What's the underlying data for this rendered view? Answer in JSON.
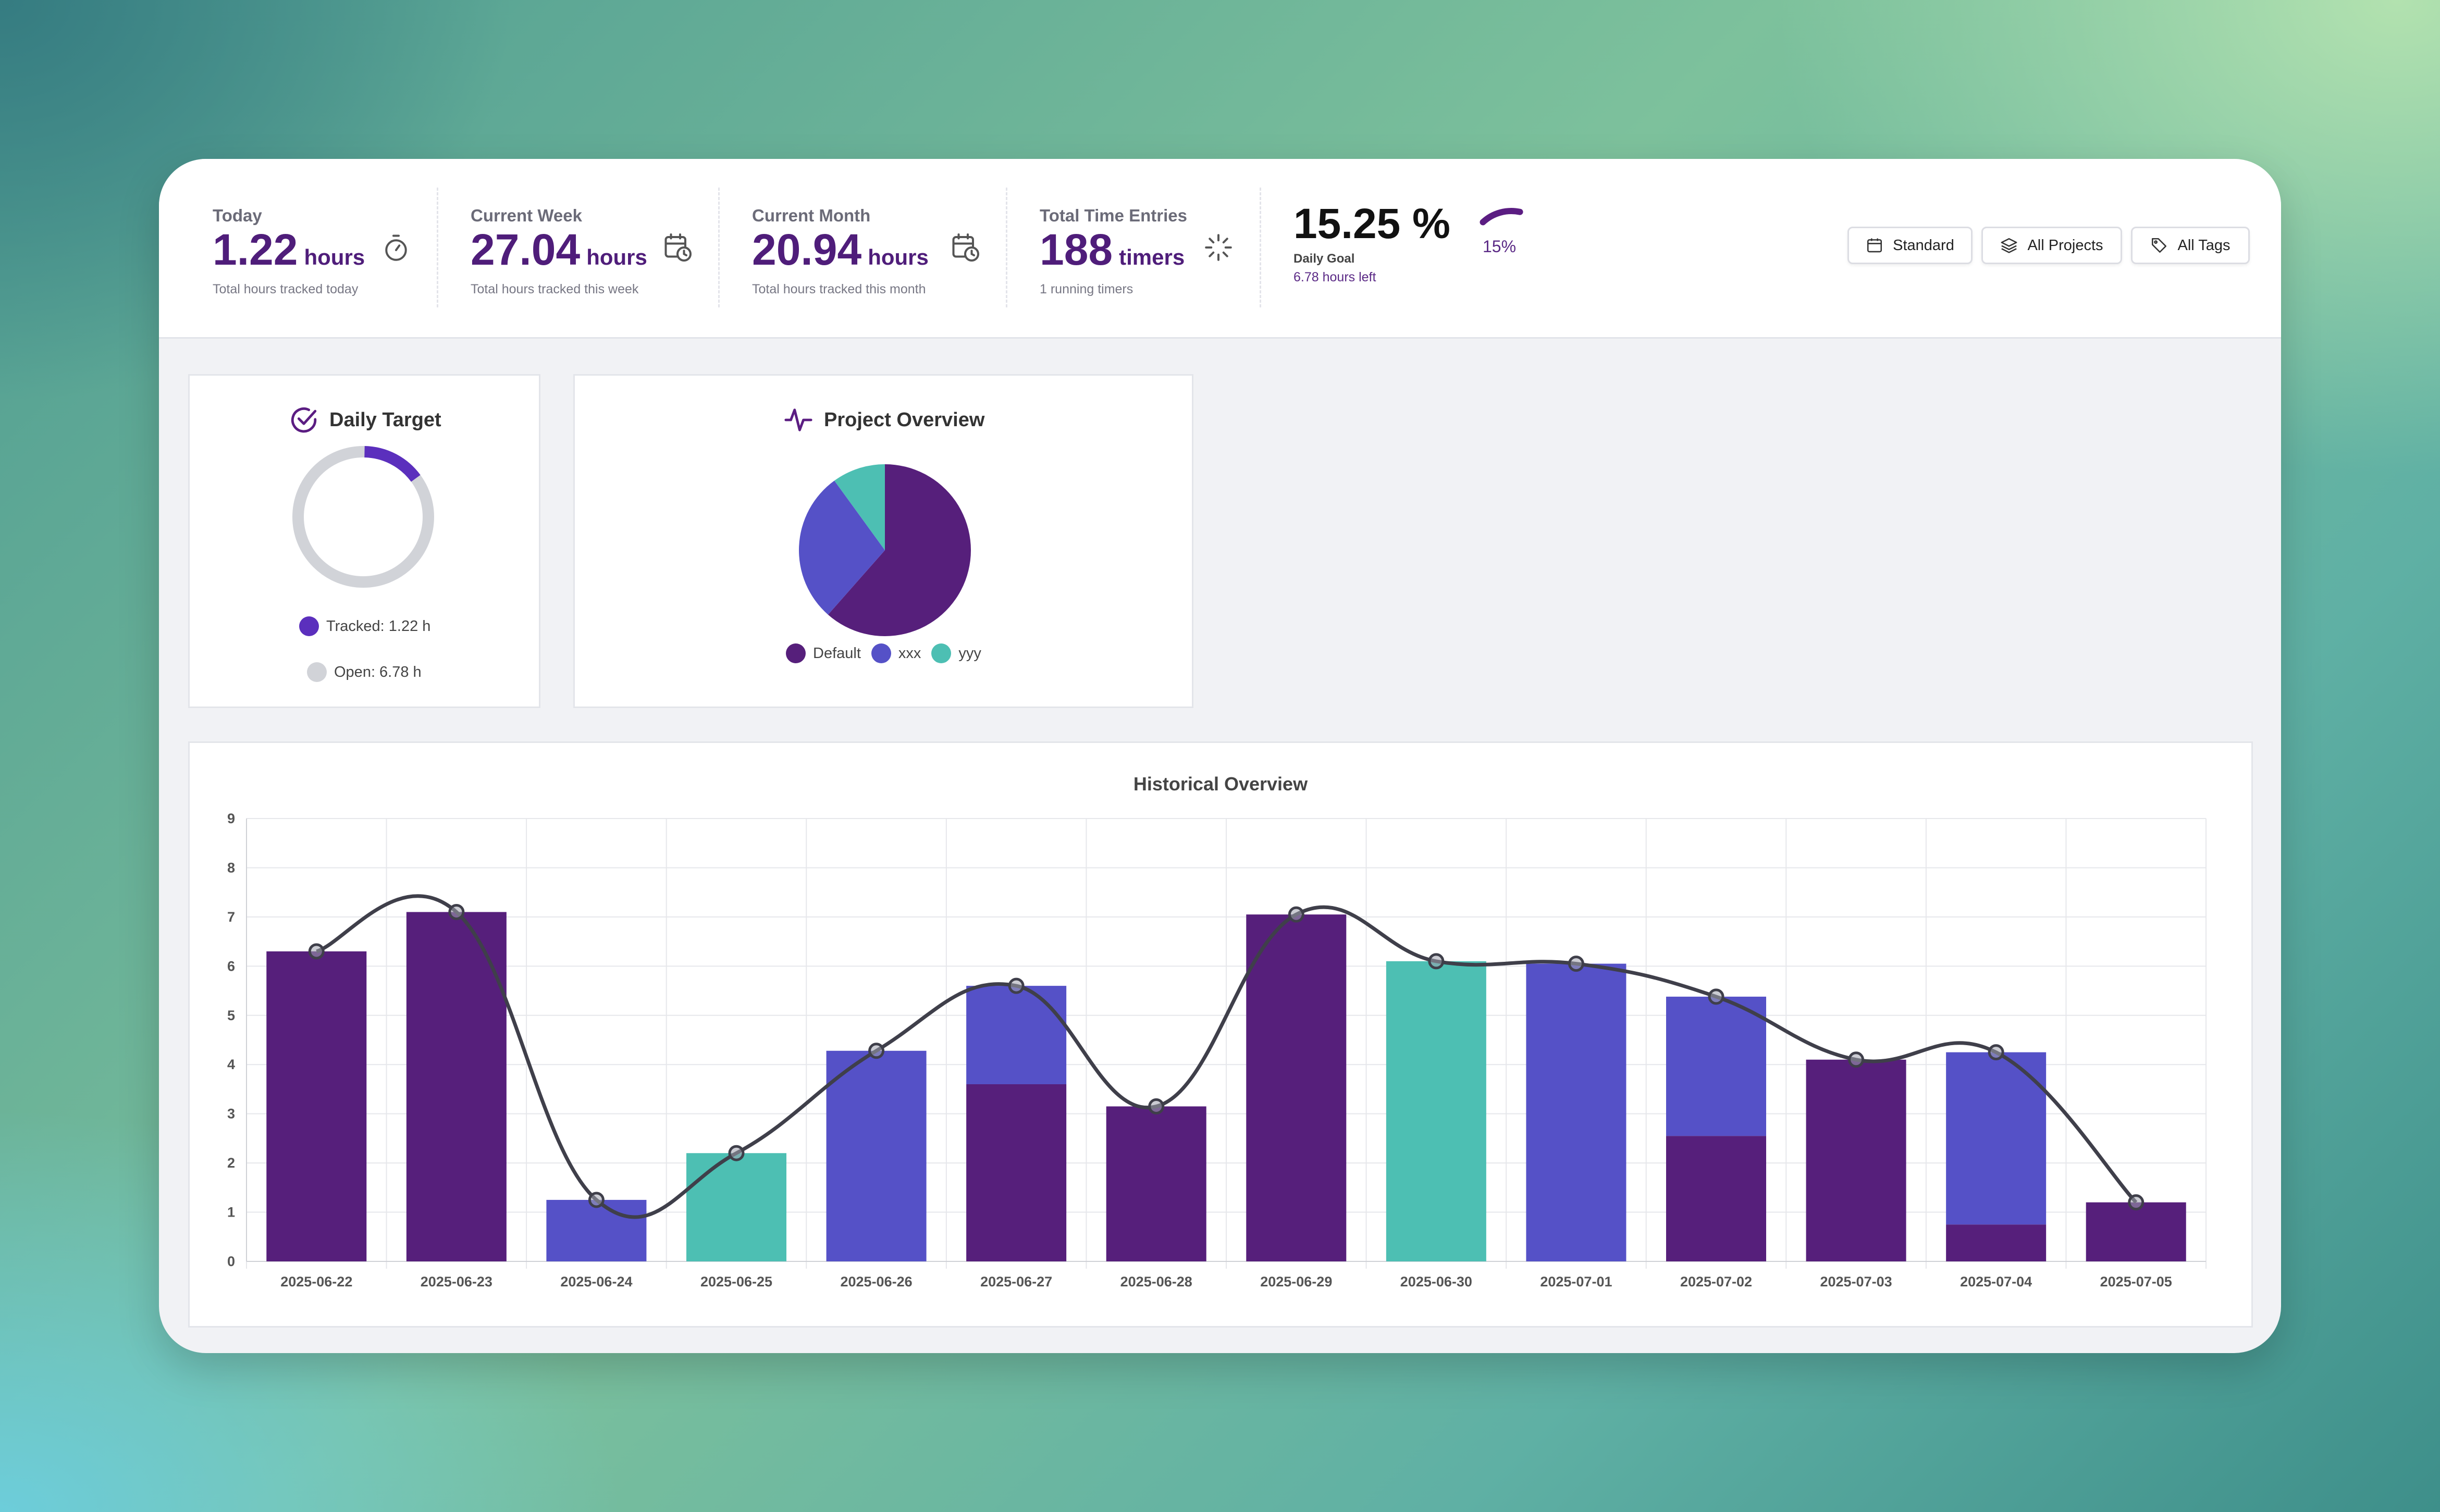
{
  "stats": [
    {
      "label": "Today",
      "value": "1.22",
      "unit": "hours",
      "sub": "Total hours tracked today",
      "icon": "stopwatch-icon"
    },
    {
      "label": "Current Week",
      "value": "27.04",
      "unit": "hours",
      "sub": "Total hours tracked this week",
      "icon": "calendar-clock-icon"
    },
    {
      "label": "Current Month",
      "value": "20.94",
      "unit": "hours",
      "sub": "Total hours tracked this month",
      "icon": "calendar-clock-icon"
    },
    {
      "label": "Total Time Entries",
      "value": "188",
      "unit": "timers",
      "sub": "1 running timers",
      "icon": "loader-icon"
    }
  ],
  "goal": {
    "value": "15.25 %",
    "label": "Daily Goal",
    "left": "6.78 hours left",
    "gauge_pct": "15%",
    "fraction": 0.1525
  },
  "buttons": [
    {
      "label": "Standard",
      "icon": "calendar-icon"
    },
    {
      "label": "All Projects",
      "icon": "layers-icon"
    },
    {
      "label": "All Tags",
      "icon": "tag-icon"
    }
  ],
  "daily_target": {
    "title": "Daily Target",
    "tracked_label": "Tracked: 1.22 h",
    "open_label": "Open: 6.78 h",
    "tracked": 1.22,
    "open": 6.78,
    "colors": {
      "tracked": "#5b2fbd",
      "open": "#d1d3d8"
    }
  },
  "project_overview": {
    "title": "Project Overview",
    "slices": [
      {
        "name": "Default",
        "value": 61.5,
        "color": "#561f7b"
      },
      {
        "name": "xxx",
        "value": 28.5,
        "color": "#5551c7"
      },
      {
        "name": "yyy",
        "value": 10,
        "color": "#4dbfb3"
      }
    ]
  },
  "chart_data": {
    "type": "bar",
    "title": "Historical Overview",
    "categories": [
      "2025-06-22",
      "2025-06-23",
      "2025-06-24",
      "2025-06-25",
      "2025-06-26",
      "2025-06-27",
      "2025-06-28",
      "2025-06-29",
      "2025-06-30",
      "2025-07-01",
      "2025-07-02",
      "2025-07-03",
      "2025-07-04",
      "2025-07-05"
    ],
    "series": [
      {
        "name": "Default",
        "color": "#561f7b",
        "values": [
          6.3,
          7.1,
          0,
          0,
          0,
          3.6,
          3.15,
          7.05,
          0,
          0,
          2.55,
          4.1,
          0.75,
          1.2
        ]
      },
      {
        "name": "xxx",
        "color": "#5551c7",
        "values": [
          0,
          0,
          1.25,
          0,
          4.28,
          2.0,
          0,
          0,
          0,
          6.05,
          2.83,
          0,
          3.5,
          0
        ]
      },
      {
        "name": "yyy",
        "color": "#4dbfb3",
        "values": [
          0,
          0,
          0,
          2.2,
          0,
          0,
          0,
          0,
          6.1,
          0,
          0,
          0,
          0,
          0
        ]
      }
    ],
    "line": {
      "values": [
        6.3,
        7.1,
        1.25,
        2.2,
        4.28,
        5.6,
        3.15,
        7.05,
        6.1,
        6.05,
        5.38,
        4.1,
        4.25,
        1.2
      ],
      "color": "#3f3f4a"
    },
    "stacked": true,
    "ylim": [
      0,
      9
    ],
    "yticks": [
      "0",
      "1",
      "2",
      "3",
      "4",
      "5",
      "6",
      "7",
      "8",
      "9"
    ],
    "grid": true
  }
}
